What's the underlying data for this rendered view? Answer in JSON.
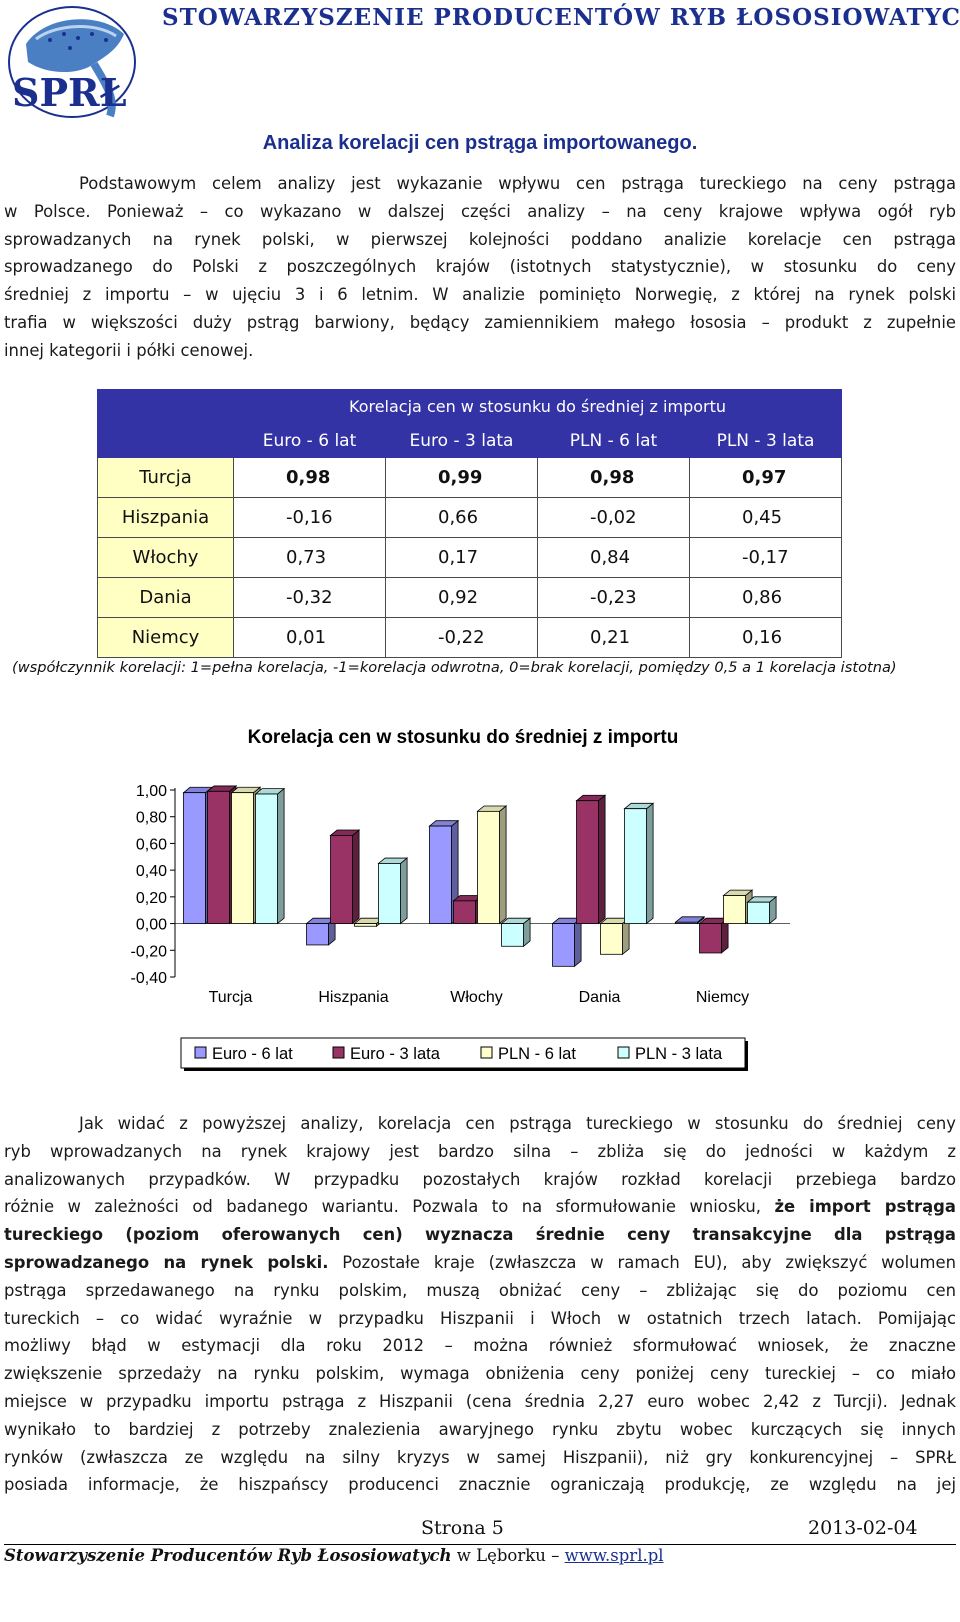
{
  "header": {
    "logo_text": "SPRŁ",
    "logo_ring_text": "Stowarzyszenie Producentów Ryb Łososiowatych",
    "org_title": "STOWARZYSZENIE PRODUCENTÓW RYB ŁOSOSIOWATYCH"
  },
  "title": "Analiza korelacji cen pstrąga importowanego.",
  "intro_lines": [
    "Podstawowym celem analizy jest wykazanie wpływu cen pstrąga tureckiego na ceny pstrąga",
    "w Polsce. Ponieważ – co wykazano w dalszej części analizy – na ceny krajowe wpływa ogół ryb",
    "sprowadzanych na rynek polski, w pierwszej kolejności poddano analizie korelacje cen pstrąga",
    "sprowadzanego do Polski z poszczególnych krajów (istotnych statystycznie), w stosunku do ceny",
    "średniej z importu – w ujęciu 3 i 6 letnim. W analizie pominięto Norwegię, z której na rynek polski",
    "trafia w większości duży pstrąg barwiony, będący zamiennikiem małego łososia – produkt z zupełnie",
    "innej kategorii i półki cenowej."
  ],
  "table": {
    "title": "Korelacja cen w stosunku do średniej z importu",
    "columns": [
      "Euro - 6 lat",
      "Euro - 3 lata",
      "PLN - 6 lat",
      "PLN - 3 lata"
    ],
    "rows": [
      {
        "country": "Turcja",
        "values": [
          "0,98",
          "0,99",
          "0,98",
          "0,97"
        ]
      },
      {
        "country": "Hiszpania",
        "values": [
          "-0,16",
          "0,66",
          "-0,02",
          "0,45"
        ]
      },
      {
        "country": "Włochy",
        "values": [
          "0,73",
          "0,17",
          "0,84",
          "-0,17"
        ]
      },
      {
        "country": "Dania",
        "values": [
          "-0,32",
          "0,92",
          "-0,23",
          "0,86"
        ]
      },
      {
        "country": "Niemcy",
        "values": [
          "0,01",
          "-0,22",
          "0,21",
          "0,16"
        ]
      }
    ],
    "note": "(współczynnik korelacji: 1=pełna korelacja, -1=korelacja odwrotna, 0=brak korelacji, pomiędzy 0,5 a 1 korelacja istotna)"
  },
  "chart_data": {
    "type": "bar",
    "title": "Korelacja cen w stosunku do średniej z importu",
    "categories": [
      "Turcja",
      "Hiszpania",
      "Włochy",
      "Dania",
      "Niemcy"
    ],
    "series": [
      {
        "name": "Euro - 6 lat",
        "values": [
          0.98,
          -0.16,
          0.73,
          -0.32,
          0.01
        ],
        "color": "#9999ff"
      },
      {
        "name": "Euro - 3 lata",
        "values": [
          0.99,
          0.66,
          0.17,
          0.92,
          -0.22
        ],
        "color": "#993366"
      },
      {
        "name": "PLN - 6 lat",
        "values": [
          0.98,
          -0.02,
          0.84,
          -0.23,
          0.21
        ],
        "color": "#ffffcc"
      },
      {
        "name": "PLN - 3 lata",
        "values": [
          0.97,
          0.45,
          -0.17,
          0.86,
          0.16
        ],
        "color": "#ccffff"
      }
    ],
    "yticks": [
      "1,00",
      "0,80",
      "0,60",
      "0,40",
      "0,20",
      "0,00",
      "-0,20",
      "-0,40"
    ],
    "ylim": [
      -0.4,
      1.0
    ],
    "legend_position": "bottom",
    "grid": false,
    "style": "3d-clustered"
  },
  "body_lines": [
    {
      "parts": [
        {
          "t": "Jak widać z powyższej analizy, korelacja cen pstrąga tureckiego w stosunku do średniej ceny",
          "b": false
        }
      ]
    },
    {
      "parts": [
        {
          "t": "ryb wprowadzanych na rynek krajowy jest bardzo silna – zbliża się do jedności w każdym z",
          "b": false
        }
      ]
    },
    {
      "parts": [
        {
          "t": "analizowanych przypadków. W przypadku pozostałych krajów rozkład korelacji przebiega bardzo",
          "b": false
        }
      ]
    },
    {
      "parts": [
        {
          "t": "różnie w zależności od badanego wariantu. Pozwala to na sformułowanie wniosku, ",
          "b": false
        },
        {
          "t": "że import pstrąga",
          "b": true
        }
      ]
    },
    {
      "parts": [
        {
          "t": "tureckiego (poziom oferowanych cen) wyznacza średnie ceny transakcyjne dla pstrąga",
          "b": true
        }
      ]
    },
    {
      "parts": [
        {
          "t": "sprowadzanego na rynek polski.",
          "b": true
        },
        {
          "t": " Pozostałe kraje (zwłaszcza w ramach EU), aby zwiększyć wolumen",
          "b": false
        }
      ]
    },
    {
      "parts": [
        {
          "t": "pstrąga sprzedawanego na rynku polskim, muszą obniżać ceny – zbliżając się do poziomu cen",
          "b": false
        }
      ]
    },
    {
      "parts": [
        {
          "t": "tureckich – co widać wyraźnie w przypadku Hiszpanii i Włoch w ostatnich trzech latach. Pomijając",
          "b": false
        }
      ]
    },
    {
      "parts": [
        {
          "t": "możliwy błąd w estymacji dla roku 2012 – można również sformułować wniosek, że znaczne",
          "b": false
        }
      ]
    },
    {
      "parts": [
        {
          "t": "zwiększenie sprzedaży na rynku polskim, wymaga obniżenia ceny poniżej ceny tureckiej – co miało",
          "b": false
        }
      ]
    },
    {
      "parts": [
        {
          "t": "miejsce w przypadku importu pstrąga z Hiszpanii (cena średnia 2,27 euro wobec 2,42 z Turcji). Jednak",
          "b": false
        }
      ]
    },
    {
      "parts": [
        {
          "t": "wynikało to bardziej z potrzeby znalezienia awaryjnego rynku zbytu wobec kurczących się innych",
          "b": false
        }
      ]
    },
    {
      "parts": [
        {
          "t": "rynków (zwłaszcza ze względu na silny kryzys w samej Hiszpanii), niż gry konkurencyjnej – SPRŁ",
          "b": false
        }
      ]
    },
    {
      "parts": [
        {
          "t": "posiada informacje, że hiszpańscy producenci znacznie ograniczają produkcję, ze względu na jej",
          "b": false
        }
      ]
    }
  ],
  "footer": {
    "page": "Strona 5",
    "date": "2013-02-04",
    "org": "Stowarzyszenie Producentów Ryb Łososiowatych",
    "location": " w Lęborku – ",
    "url": "www.sprl.pl"
  }
}
